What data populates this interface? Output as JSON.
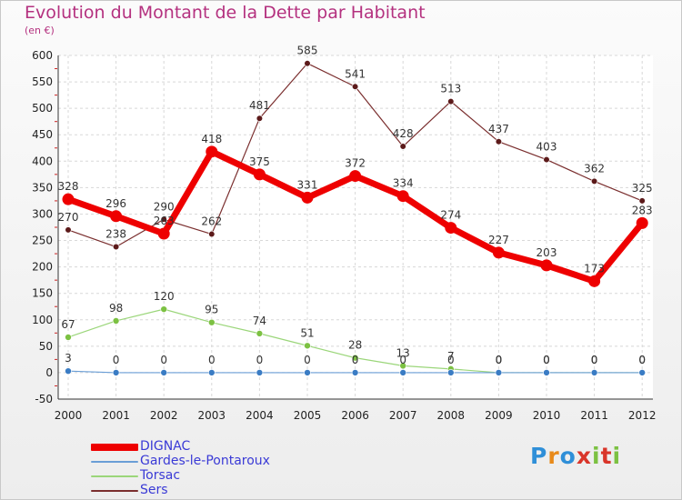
{
  "title": "Evolution du Montant de la Dette par Habitant",
  "subtitle": "(en €)",
  "logo": "Proxiti",
  "chart_data": {
    "type": "line",
    "x": [
      "2000",
      "2001",
      "2002",
      "2003",
      "2004",
      "2005",
      "2006",
      "2007",
      "2008",
      "2009",
      "2010",
      "2011",
      "2012"
    ],
    "ylim": [
      -50,
      600
    ],
    "yticks": [
      -50,
      0,
      50,
      100,
      150,
      200,
      250,
      300,
      350,
      400,
      450,
      500,
      550,
      600
    ],
    "grid": true,
    "legend_position": "bottom-left",
    "series": [
      {
        "name": "Sers",
        "color": "#7a2e2e",
        "marker": "#5c1a1a",
        "values": [
          270,
          238,
          290,
          262,
          481,
          585,
          541,
          428,
          513,
          437,
          403,
          362,
          325
        ]
      },
      {
        "name": "Torsac",
        "color": "#9bd67a",
        "marker": "#7cc142",
        "values": [
          67,
          98,
          120,
          95,
          74,
          51,
          28,
          13,
          7,
          0,
          0,
          0,
          0
        ]
      },
      {
        "name": "Gardes-le-Pontaroux",
        "color": "#6a9ed6",
        "marker": "#3a7cc4",
        "values": [
          3,
          0,
          0,
          0,
          0,
          0,
          0,
          0,
          0,
          0,
          0,
          0,
          0
        ]
      },
      {
        "name": "DIGNAC",
        "color": "#ee0000",
        "marker": "#ee0000",
        "values": [
          328,
          296,
          263,
          418,
          375,
          331,
          372,
          334,
          274,
          227,
          203,
          173,
          283
        ]
      }
    ]
  }
}
